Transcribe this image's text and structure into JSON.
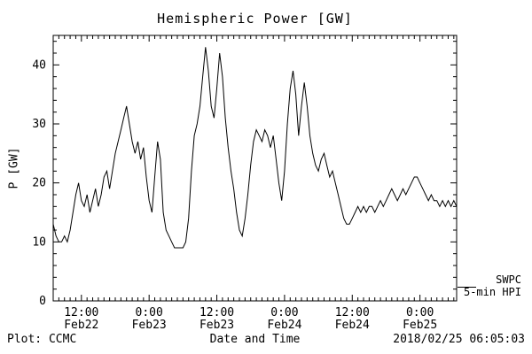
{
  "title": "Hemispheric Power [GW]",
  "footer": {
    "left": "Plot: CCMC",
    "right": "2018/02/25 06:05:03"
  },
  "legend": {
    "line1": "SWPC",
    "line2": "5-min HPI"
  },
  "colors": {
    "background": "#ffffff",
    "foreground": "#000000",
    "line": "#000000"
  },
  "chart_data": {
    "type": "line",
    "title": "Hemispheric Power [GW]",
    "xlabel": "Date and Time",
    "ylabel": "P [GW]",
    "ylim": [
      0,
      45
    ],
    "y_ticks": [
      0,
      10,
      20,
      30,
      40
    ],
    "y_minor_step": 2,
    "xlim_hours_from_feb22_0000": [
      7,
      78.5
    ],
    "x_minor_step_hours": 1,
    "x_ticks": [
      {
        "hours": 12,
        "time": "12:00",
        "date": "Feb22"
      },
      {
        "hours": 24,
        "time": "0:00",
        "date": "Feb23"
      },
      {
        "hours": 36,
        "time": "12:00",
        "date": "Feb23"
      },
      {
        "hours": 48,
        "time": "0:00",
        "date": "Feb24"
      },
      {
        "hours": 60,
        "time": "12:00",
        "date": "Feb24"
      },
      {
        "hours": 72,
        "time": "0:00",
        "date": "Feb25"
      }
    ],
    "series": [
      {
        "name": "SWPC 5-min HPI",
        "x_start_hours": 7,
        "x_step_hours": 0.5,
        "values": [
          13,
          11,
          10,
          10,
          11,
          10,
          12,
          15,
          18,
          20,
          17,
          16,
          18,
          15,
          17,
          19,
          16,
          18,
          21,
          22,
          19,
          22,
          25,
          27,
          29,
          31,
          33,
          30,
          27,
          25,
          27,
          24,
          26,
          21,
          17,
          15,
          21,
          27,
          24,
          15,
          12,
          11,
          10,
          9,
          9,
          9,
          9,
          10,
          14,
          22,
          28,
          30,
          33,
          38,
          43,
          39,
          33,
          31,
          36,
          42,
          38,
          31,
          26,
          22,
          19,
          15,
          12,
          11,
          14,
          18,
          23,
          27,
          29,
          28,
          27,
          29,
          28,
          26,
          28,
          24,
          20,
          17,
          22,
          30,
          36,
          39,
          35,
          28,
          33,
          37,
          33,
          28,
          25,
          23,
          22,
          24,
          25,
          23,
          21,
          22,
          20,
          18,
          16,
          14,
          13,
          13,
          14,
          15,
          16,
          15,
          16,
          15,
          16,
          16,
          15,
          16,
          17,
          16,
          17,
          18,
          19,
          18,
          17,
          18,
          19,
          18,
          19,
          20,
          21,
          21,
          20,
          19,
          18,
          17,
          18,
          17,
          17,
          16,
          17,
          16,
          17,
          16,
          17,
          16
        ]
      }
    ],
    "grid": false,
    "legend_position": "outside-right-bottom"
  }
}
